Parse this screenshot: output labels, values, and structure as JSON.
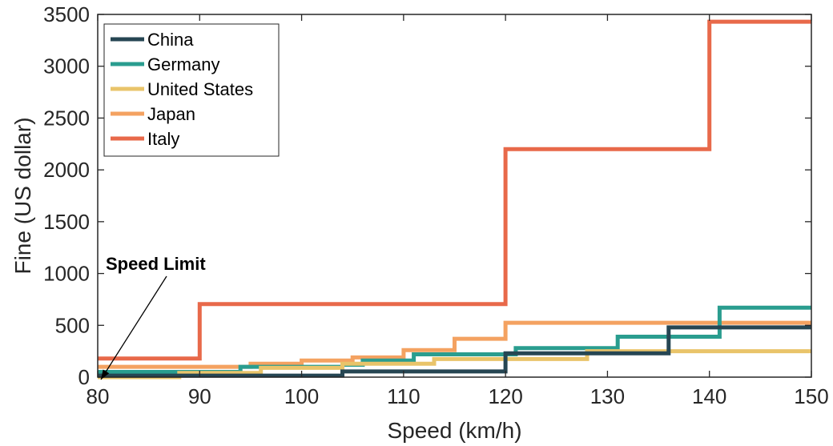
{
  "chart_data": {
    "type": "line",
    "step": true,
    "title": "",
    "xlabel": "Speed (km/h)",
    "ylabel": "Fine (US dollar)",
    "xlim": [
      80,
      150
    ],
    "ylim": [
      0,
      3500
    ],
    "xticks": [
      80,
      90,
      100,
      110,
      120,
      130,
      140,
      150
    ],
    "yticks": [
      0,
      500,
      1000,
      1500,
      2000,
      2500,
      3000,
      3500
    ],
    "grid": false,
    "legend_position": "top-left",
    "annotation": {
      "text": "Speed Limit",
      "points_to": [
        80,
        0
      ]
    },
    "series": [
      {
        "name": "Italy",
        "color": "#e8694a",
        "points": [
          [
            80,
            180
          ],
          [
            90,
            180
          ],
          [
            90,
            705
          ],
          [
            120,
            705
          ],
          [
            120,
            2200
          ],
          [
            140,
            2200
          ],
          [
            140,
            3430
          ],
          [
            150,
            3430
          ]
        ]
      },
      {
        "name": "Japan",
        "color": "#f4a261",
        "points": [
          [
            80,
            100
          ],
          [
            95,
            100
          ],
          [
            95,
            130
          ],
          [
            100,
            130
          ],
          [
            100,
            160
          ],
          [
            105,
            160
          ],
          [
            105,
            190
          ],
          [
            110,
            190
          ],
          [
            110,
            260
          ],
          [
            115,
            260
          ],
          [
            115,
            370
          ],
          [
            120,
            370
          ],
          [
            120,
            525
          ],
          [
            150,
            525
          ]
        ]
      },
      {
        "name": "Germany",
        "color": "#2a9d8f",
        "points": [
          [
            80,
            50
          ],
          [
            94,
            50
          ],
          [
            94,
            100
          ],
          [
            104,
            100
          ],
          [
            104,
            120
          ],
          [
            106,
            120
          ],
          [
            106,
            160
          ],
          [
            111,
            160
          ],
          [
            111,
            220
          ],
          [
            121,
            220
          ],
          [
            121,
            280
          ],
          [
            131,
            280
          ],
          [
            131,
            390
          ],
          [
            141,
            390
          ],
          [
            141,
            670
          ],
          [
            150,
            670
          ]
        ]
      },
      {
        "name": "United States",
        "color": "#e9c46a",
        "points": [
          [
            80,
            0
          ],
          [
            88,
            0
          ],
          [
            88,
            40
          ],
          [
            96,
            40
          ],
          [
            96,
            90
          ],
          [
            104,
            90
          ],
          [
            104,
            130
          ],
          [
            113,
            130
          ],
          [
            113,
            175
          ],
          [
            128,
            175
          ],
          [
            128,
            250
          ],
          [
            150,
            250
          ]
        ]
      },
      {
        "name": "China",
        "color": "#264653",
        "points": [
          [
            80,
            15
          ],
          [
            104,
            15
          ],
          [
            104,
            55
          ],
          [
            120,
            55
          ],
          [
            120,
            230
          ],
          [
            136,
            230
          ],
          [
            136,
            480
          ],
          [
            150,
            480
          ]
        ]
      }
    ],
    "legend_order": [
      "China",
      "Germany",
      "United States",
      "Japan",
      "Italy"
    ]
  }
}
